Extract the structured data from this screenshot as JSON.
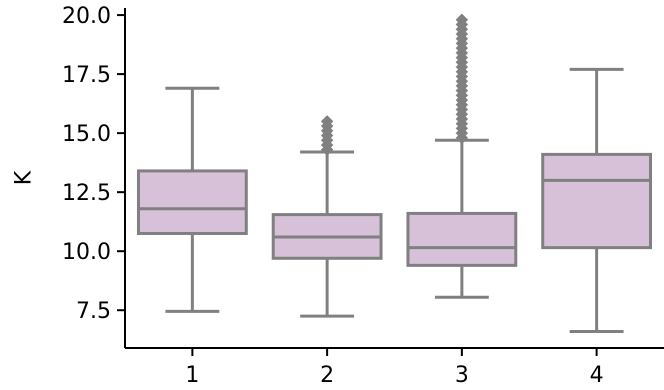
{
  "chart_data": {
    "type": "box",
    "title": "",
    "xlabel": "",
    "ylabel": "K",
    "ylim": [
      5.9,
      20.3
    ],
    "categories": [
      "1",
      "2",
      "3",
      "4"
    ],
    "yticks": [
      "7.5",
      "10.0",
      "12.5",
      "15.0",
      "17.5",
      "20.0"
    ],
    "box_color": "#d6c1d8",
    "line_color": "#808080",
    "boxes": [
      {
        "category": "1",
        "whisker_low": 7.45,
        "q1": 10.75,
        "median": 11.8,
        "q3": 13.4,
        "whisker_high": 16.9,
        "outliers": []
      },
      {
        "category": "2",
        "whisker_low": 7.25,
        "q1": 9.7,
        "median": 10.6,
        "q3": 11.55,
        "whisker_high": 14.2,
        "outliers": [
          14.3,
          14.5,
          14.7,
          14.9,
          15.1,
          15.3,
          15.5
        ]
      },
      {
        "category": "3",
        "whisker_low": 8.05,
        "q1": 9.4,
        "median": 10.15,
        "q3": 11.6,
        "whisker_high": 14.7,
        "outliers": [
          14.8,
          15.0,
          15.2,
          15.4,
          15.6,
          15.8,
          16.0,
          16.2,
          16.4,
          16.6,
          16.8,
          17.0,
          17.2,
          17.4,
          17.6,
          17.8,
          18.0,
          18.2,
          18.4,
          18.6,
          18.8,
          19.0,
          19.2,
          19.4,
          19.6,
          19.8
        ]
      },
      {
        "category": "4",
        "whisker_low": 6.6,
        "q1": 10.15,
        "median": 13.0,
        "q3": 14.1,
        "whisker_high": 17.7,
        "outliers": []
      }
    ]
  }
}
